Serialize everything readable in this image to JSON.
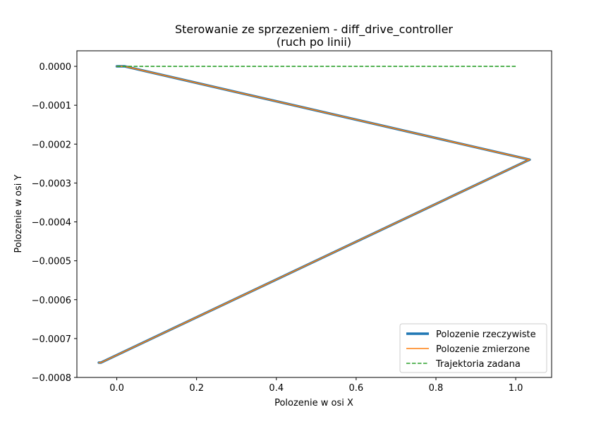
{
  "chart_data": {
    "type": "line",
    "title": "Sterowanie ze sprzezeniem - diff_drive_controller",
    "subtitle": "(ruch po linii)",
    "xlabel": "Polozenie w osi X",
    "ylabel": "Polozenie w osi Y",
    "xlim": [
      -0.1,
      1.09
    ],
    "ylim": [
      -0.0008,
      4e-05
    ],
    "xticks": [
      0.0,
      0.2,
      0.4,
      0.6,
      0.8,
      1.0
    ],
    "xtick_labels": [
      "0.0",
      "0.2",
      "0.4",
      "0.6",
      "0.8",
      "1.0"
    ],
    "yticks": [
      0.0,
      -0.0001,
      -0.0002,
      -0.0003,
      -0.0004,
      -0.0005,
      -0.0006,
      -0.0007,
      -0.0008
    ],
    "ytick_labels": [
      "0.0000",
      "−0.0001",
      "−0.0002",
      "−0.0003",
      "−0.0004",
      "−0.0005",
      "−0.0006",
      "−0.0007",
      "−0.0008"
    ],
    "legend_position": "lower right",
    "grid": false,
    "series": [
      {
        "name": "Polozenie rzeczywiste",
        "color": "#1f77b4",
        "style": "solid-thick",
        "x": [
          0.0,
          0.02,
          1.035,
          1.03,
          -0.04,
          -0.045
        ],
        "y": [
          0.0,
          0.0,
          -0.00024,
          -0.000242,
          -0.000762,
          -0.000762
        ]
      },
      {
        "name": "Polozenie zmierzone",
        "color": "#ff7f0e",
        "style": "solid",
        "x": [
          0.0,
          0.02,
          1.035,
          1.03,
          -0.04,
          -0.045
        ],
        "y": [
          0.0,
          0.0,
          -0.00024,
          -0.000242,
          -0.000762,
          -0.000762
        ]
      },
      {
        "name": "Trajektoria zadana",
        "color": "#2ca02c",
        "style": "dashed",
        "x": [
          0.0,
          1.0
        ],
        "y": [
          0.0,
          0.0
        ]
      }
    ]
  }
}
